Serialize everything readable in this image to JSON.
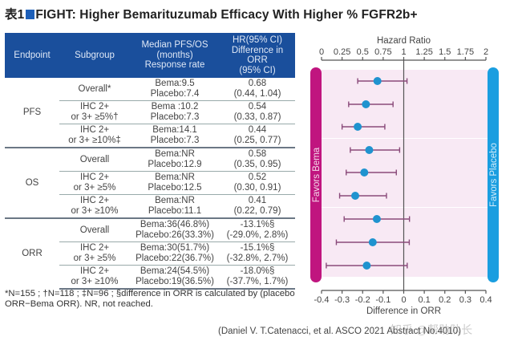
{
  "title": {
    "prefix": "表1",
    "text": "FIGHT: Higher Bemarituzumab Efficacy With Higher % FGFR2b+"
  },
  "table": {
    "headers": [
      "Endpoint",
      "Subgroup",
      "Median PFS/OS\n(months)\nResponse rate",
      "HR(95% CI)\nDifference in ORR\n(95% CI)"
    ],
    "header_lines": {
      "endpoint": "Endpoint",
      "subgroup": "Subgroup",
      "median": [
        "Median PFS/OS",
        "(months)",
        "Response rate"
      ],
      "hr": [
        "HR(95% CI)",
        "Difference in ORR",
        "(95% CI)"
      ]
    },
    "groups": [
      {
        "endpoint": "PFS",
        "rows": [
          {
            "subgroup": [
              "Overall*"
            ],
            "median": [
              "Bema:9.5",
              "Placebo:7.4"
            ],
            "value": [
              "0.68",
              "(0.44, 1.04)"
            ]
          },
          {
            "subgroup": [
              "IHC 2+",
              "or 3+ ≥5%†"
            ],
            "median": [
              "Bema :10.2",
              "Placebo:7.3"
            ],
            "value": [
              "0.54",
              "(0.33, 0.87)"
            ]
          },
          {
            "subgroup": [
              "IHC 2+",
              "or 3+ ≥10%‡"
            ],
            "median": [
              "Bema:14.1",
              "Placebo:7.3"
            ],
            "value": [
              "0.44",
              "(0.25, 0.77)"
            ]
          }
        ]
      },
      {
        "endpoint": "OS",
        "rows": [
          {
            "subgroup": [
              "Overall"
            ],
            "median": [
              "Bema:NR",
              "Placebo:12.9"
            ],
            "value": [
              "0.58",
              "(0.35, 0.95)"
            ]
          },
          {
            "subgroup": [
              "IHC 2+",
              "or 3+ ≥5%"
            ],
            "median": [
              "Bema:NR",
              "Placebo:12.5"
            ],
            "value": [
              "0.52",
              "(0.30, 0.91)"
            ]
          },
          {
            "subgroup": [
              "IHC 2+",
              "or 3+ ≥10%"
            ],
            "median": [
              "Bema:NR",
              "Placebo:11.1"
            ],
            "value": [
              "0.41",
              "(0.22, 0.79)"
            ]
          }
        ]
      },
      {
        "endpoint": "ORR",
        "rows": [
          {
            "subgroup": [
              "Overall"
            ],
            "median": [
              "Bema:36(46.8%)",
              "Placebo:26(33.3%)"
            ],
            "value": [
              "-13.1%§",
              "(-29.0%, 2.8%)"
            ]
          },
          {
            "subgroup": [
              "IHC 2+",
              "or 3+ ≥5%"
            ],
            "median": [
              "Bema:30(51.7%)",
              "Placebo:22(36.7%)"
            ],
            "value": [
              "-15.1%§",
              "(-32.8%, 2.7%)"
            ]
          },
          {
            "subgroup": [
              "IHC 2+",
              "or 3+ ≥10%"
            ],
            "median": [
              "Bema:24(54.5%)",
              "Placebo:19(36.5%)"
            ],
            "value": [
              "-18.0%§",
              "(-37.7%, 1.7%)"
            ]
          }
        ]
      }
    ]
  },
  "footnote": "*N=155 ; †N=118 ; ‡N=96 ; §difference in ORR is calculated by (placebo ORR−Bema ORR). NR, not reached.",
  "citation": "(Daniel V. T.Catenacci, et al. ASCO 2021 Abstract No.4010)",
  "watermark": "知乎 @帮助队长",
  "colors": {
    "header_bg": "#1a4f9c",
    "title_square": "#1d5fb8",
    "favors_bema": "#c0157f",
    "favors_placebo": "#1a9ee0",
    "point": "#1f93cf",
    "ci_line": "#8a4a7a",
    "band": "#f8e9f4"
  },
  "chart_data": {
    "type": "scatter",
    "subtype": "forest-plot",
    "top_axis": {
      "title": "Hazard Ratio",
      "range": [
        0,
        2
      ],
      "ticks": [
        0,
        0.25,
        0.5,
        0.75,
        1,
        1.25,
        1.5,
        1.75,
        2
      ],
      "tick_labels": [
        "0",
        "0.25",
        "0.5",
        "0.75",
        "1",
        "1.25",
        "1.5",
        "1.75",
        "2"
      ],
      "reference": 1
    },
    "bottom_axis": {
      "title": "Difference in ORR",
      "range": [
        -0.4,
        0.4
      ],
      "ticks": [
        -0.4,
        -0.3,
        -0.2,
        -0.1,
        0,
        0.1,
        0.2,
        0.3,
        0.4
      ],
      "tick_labels": [
        "-0.4",
        "-0.3",
        "-0.2",
        "-0.1",
        "0",
        "0.1",
        "0.2",
        "0.3",
        "0.4"
      ],
      "reference": 0
    },
    "left_label": "Favors Bema",
    "right_label": "Favors Placebo",
    "series": [
      {
        "name": "PFS",
        "axis": "top",
        "points": [
          {
            "label": "Overall",
            "estimate": 0.68,
            "lower": 0.44,
            "upper": 1.04
          },
          {
            "label": "IHC 2+ or 3+ ≥5%",
            "estimate": 0.54,
            "lower": 0.33,
            "upper": 0.87
          },
          {
            "label": "IHC 2+ or 3+ ≥10%",
            "estimate": 0.44,
            "lower": 0.25,
            "upper": 0.77
          }
        ]
      },
      {
        "name": "OS",
        "axis": "top",
        "points": [
          {
            "label": "Overall",
            "estimate": 0.58,
            "lower": 0.35,
            "upper": 0.95
          },
          {
            "label": "IHC 2+ or 3+ ≥5%",
            "estimate": 0.52,
            "lower": 0.3,
            "upper": 0.91
          },
          {
            "label": "IHC 2+ or 3+ ≥10%",
            "estimate": 0.41,
            "lower": 0.22,
            "upper": 0.79
          }
        ]
      },
      {
        "name": "ORR",
        "axis": "bottom",
        "points": [
          {
            "label": "Overall",
            "estimate": -0.131,
            "lower": -0.29,
            "upper": 0.028
          },
          {
            "label": "IHC 2+ or 3+ ≥5%",
            "estimate": -0.151,
            "lower": -0.328,
            "upper": 0.027
          },
          {
            "label": "IHC 2+ or 3+ ≥10%",
            "estimate": -0.18,
            "lower": -0.377,
            "upper": 0.017
          }
        ]
      }
    ]
  }
}
